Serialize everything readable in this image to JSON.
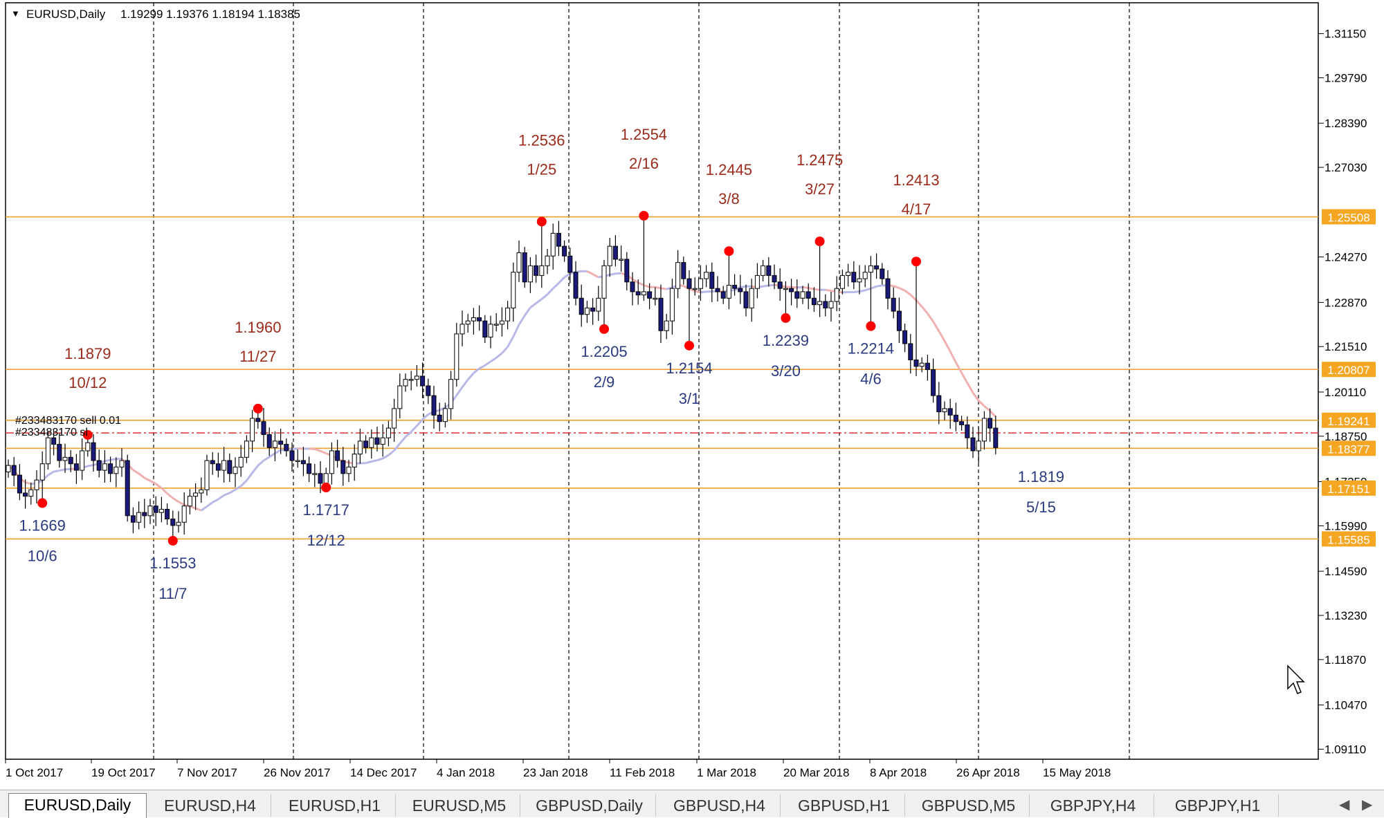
{
  "header": {
    "symbol_label": "EURUSD,Daily",
    "ohlc": "1.19299 1.19376 1.18194 1.18385",
    "toggle_icon": "triangle-down-icon"
  },
  "order_labels": {
    "sell": "#233483170 sell 0.01",
    "sl": "#233483170 sl"
  },
  "colors": {
    "level_line": "#f0a030",
    "level_box": "#f5a623",
    "bull_candle": "#ffffff",
    "bear_candle": "#1a1a7a",
    "ma_rising": "#b8b8e8",
    "ma_falling": "#f0b0b0",
    "marker": "#ff0000",
    "annot_high": "#9b2a1a",
    "annot_low": "#2a3a80",
    "order_line": "#e03030"
  },
  "tabs": [
    {
      "label": "EURUSD,Daily",
      "active": true
    },
    {
      "label": "EURUSD,H4",
      "active": false
    },
    {
      "label": "EURUSD,H1",
      "active": false
    },
    {
      "label": "EURUSD,M5",
      "active": false
    },
    {
      "label": "GBPUSD,Daily",
      "active": false
    },
    {
      "label": "GBPUSD,H4",
      "active": false
    },
    {
      "label": "GBPUSD,H1",
      "active": false
    },
    {
      "label": "GBPUSD,M5",
      "active": false
    },
    {
      "label": "GBPJPY,H4",
      "active": false
    },
    {
      "label": "GBPJPY,H1",
      "active": false
    }
  ],
  "chart_data": {
    "type": "candlestick",
    "title": "EURUSD,Daily",
    "ylim": [
      1.088,
      1.321
    ],
    "grid": "vertical-dashed",
    "y_ticks": [
      "1.31150",
      "1.29790",
      "1.28390",
      "1.27030",
      "1.24270",
      "1.22870",
      "1.21510",
      "1.20110",
      "1.18750",
      "1.17350",
      "1.15990",
      "1.14590",
      "1.13230",
      "1.11870",
      "1.10470",
      "1.09110"
    ],
    "x_labels": [
      "1 Oct 2017",
      "19 Oct 2017",
      "7 Nov 2017",
      "26 Nov 2017",
      "14 Dec 2017",
      "4 Jan 2018",
      "23 Jan 2018",
      "11 Feb 2018",
      "1 Mar 2018",
      "20 Mar 2018",
      "8 Apr 2018",
      "26 Apr 2018",
      "15 May 2018"
    ],
    "price_levels": [
      {
        "price": "1.25508",
        "value": 1.25508
      },
      {
        "price": "1.20807",
        "value": 1.20807
      },
      {
        "price": "1.19241",
        "value": 1.19241
      },
      {
        "price": "1.18377",
        "value": 1.18377
      },
      {
        "price": "1.17151",
        "value": 1.17151
      },
      {
        "price": "1.15585",
        "value": 1.15585
      }
    ],
    "order_line_price": 1.1885,
    "closes": [
      1.1785,
      1.1755,
      1.17,
      1.169,
      1.171,
      1.174,
      1.179,
      1.187,
      1.185,
      1.18,
      1.181,
      1.179,
      1.177,
      1.183,
      1.1855,
      1.18,
      1.177,
      1.179,
      1.176,
      1.178,
      1.18,
      1.163,
      1.161,
      1.164,
      1.163,
      1.166,
      1.164,
      1.165,
      1.162,
      1.16,
      1.161,
      1.166,
      1.169,
      1.17,
      1.171,
      1.18,
      1.179,
      1.177,
      1.18,
      1.176,
      1.178,
      1.181,
      1.186,
      1.193,
      1.192,
      1.188,
      1.184,
      1.186,
      1.185,
      1.183,
      1.18,
      1.18,
      1.179,
      1.176,
      1.176,
      1.173,
      1.176,
      1.183,
      1.18,
      1.176,
      1.178,
      1.182,
      1.186,
      1.184,
      1.187,
      1.185,
      1.187,
      1.19,
      1.196,
      1.203,
      1.205,
      1.205,
      1.206,
      1.203,
      1.2,
      1.194,
      1.192,
      1.196,
      1.205,
      1.219,
      1.222,
      1.223,
      1.224,
      1.223,
      1.218,
      1.222,
      1.222,
      1.223,
      1.227,
      1.238,
      1.244,
      1.235,
      1.24,
      1.237,
      1.24,
      1.243,
      1.25,
      1.246,
      1.243,
      1.238,
      1.23,
      1.225,
      1.227,
      1.226,
      1.23,
      1.24,
      1.246,
      1.242,
      1.242,
      1.235,
      1.232,
      1.231,
      1.232,
      1.23,
      1.23,
      1.22,
      1.223,
      1.233,
      1.241,
      1.236,
      1.233,
      1.233,
      1.236,
      1.238,
      1.233,
      1.232,
      1.23,
      1.234,
      1.233,
      1.232,
      1.227,
      1.233,
      1.237,
      1.24,
      1.237,
      1.235,
      1.233,
      1.233,
      1.232,
      1.23,
      1.232,
      1.23,
      1.228,
      1.229,
      1.227,
      1.229,
      1.233,
      1.237,
      1.238,
      1.235,
      1.236,
      1.238,
      1.24,
      1.239,
      1.236,
      1.23,
      1.226,
      1.22,
      1.216,
      1.211,
      1.209,
      1.21,
      1.208,
      1.2,
      1.195,
      1.196,
      1.194,
      1.192,
      1.191,
      1.187,
      1.183,
      1.186,
      1.193,
      1.19,
      1.184
    ],
    "marker_points": [
      {
        "index": 6,
        "price": 1.1669,
        "at": "low"
      },
      {
        "index": 14,
        "price": 1.1879,
        "at": "high"
      },
      {
        "index": 29,
        "price": 1.1553,
        "at": "low"
      },
      {
        "index": 44,
        "price": 1.196,
        "at": "high"
      },
      {
        "index": 56,
        "price": 1.1717,
        "at": "low"
      },
      {
        "index": 94,
        "price": 1.2536,
        "at": "high"
      },
      {
        "index": 105,
        "price": 1.2205,
        "at": "low"
      },
      {
        "index": 112,
        "price": 1.2554,
        "at": "high"
      },
      {
        "index": 120,
        "price": 1.2154,
        "at": "low"
      },
      {
        "index": 127,
        "price": 1.2445,
        "at": "high"
      },
      {
        "index": 137,
        "price": 1.2239,
        "at": "low"
      },
      {
        "index": 143,
        "price": 1.2475,
        "at": "high"
      },
      {
        "index": 152,
        "price": 1.2214,
        "at": "low"
      },
      {
        "index": 160,
        "price": 1.2413,
        "at": "high"
      }
    ],
    "annotations": [
      {
        "price": "1.1879",
        "date": "10/12",
        "kind": "high",
        "index": 14
      },
      {
        "price": "1.1960",
        "date": "11/27",
        "kind": "high",
        "index": 44
      },
      {
        "price": "1.2536",
        "date": "1/25",
        "kind": "high",
        "index": 94
      },
      {
        "price": "1.2554",
        "date": "2/16",
        "kind": "high",
        "index": 112
      },
      {
        "price": "1.2445",
        "date": "3/8",
        "kind": "high",
        "index": 127
      },
      {
        "price": "1.2475",
        "date": "3/27",
        "kind": "high",
        "index": 143
      },
      {
        "price": "1.2413",
        "date": "4/17",
        "kind": "high",
        "index": 160
      },
      {
        "price": "1.1669",
        "date": "10/6",
        "kind": "low",
        "index": 6
      },
      {
        "price": "1.1553",
        "date": "11/7",
        "kind": "low",
        "index": 29
      },
      {
        "price": "1.1717",
        "date": "12/12",
        "kind": "low",
        "index": 56
      },
      {
        "price": "1.2205",
        "date": "2/9",
        "kind": "low",
        "index": 105
      },
      {
        "price": "1.2154",
        "date": "3/1",
        "kind": "low",
        "index": 120
      },
      {
        "price": "1.2239",
        "date": "3/20",
        "kind": "low",
        "index": 137
      },
      {
        "price": "1.2214",
        "date": "4/6",
        "kind": "low",
        "index": 152
      },
      {
        "price": "1.1819",
        "date": "5/15",
        "kind": "low",
        "index": 182
      }
    ]
  }
}
